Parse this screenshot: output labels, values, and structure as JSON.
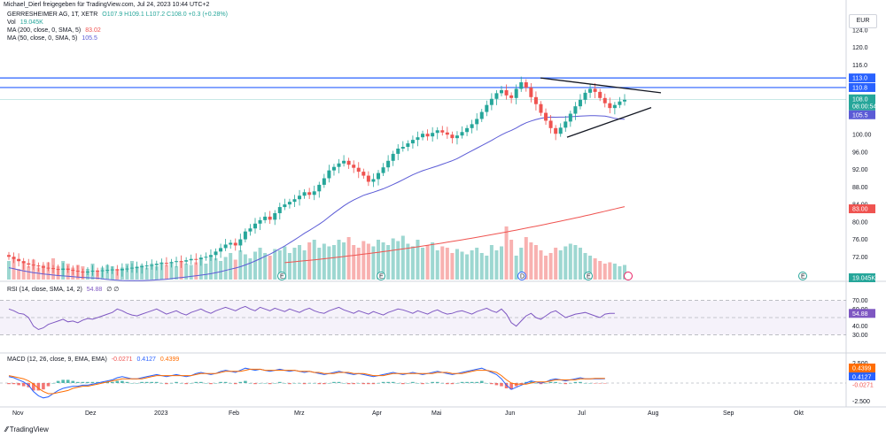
{
  "header": {
    "text": "Michael_Dierl freigegeben für TradingView.com, Jul 24, 2023 10:44 UTC+2"
  },
  "legend": {
    "symbol": "GERRESHEIMER AG, 1T, XETR",
    "ohlc": "O107.9 H109.1 L107.2 C108.0 +0.3 (+0.28%)",
    "vol_label": "Vol",
    "vol_value": "19.045K",
    "ma200_label": "MA (200, close, 0, SMA, 5)",
    "ma200_value": "83.02",
    "ma50_label": "MA (50, close, 0, SMA, 5)",
    "ma50_value": "105.5",
    "rsi_label": "RSI (14, close, SMA, 14, 2)",
    "rsi_value": "54.88",
    "rsi_extra": "∅ ∅",
    "macd_label": "MACD (12, 26, close, 9, EMA, EMA)",
    "macd_hist": "-0.0271",
    "macd_line": "0.4127",
    "macd_signal": "0.4399"
  },
  "currency": "EUR",
  "footer": {
    "brand": "TradingView"
  },
  "colors": {
    "up": "#26a69a",
    "down": "#ef5350",
    "ma50": "#5b5bd6",
    "ma200": "#ef5350",
    "hline": "#2962ff",
    "rsi": "#7e57c2",
    "macd": "#2962ff",
    "signal": "#ff6d00"
  },
  "chart_data": {
    "type": "candlestick",
    "price_ticks": [
      "124.0",
      "120.0",
      "116.0",
      "113.0",
      "110.8",
      "108.0",
      "105.5",
      "100.00",
      "96.00",
      "92.00",
      "88.00",
      "84.00",
      "83.00",
      "80.00",
      "76.00",
      "72.00",
      "19.045K"
    ],
    "time_ticks": [
      "Nov",
      "Dez",
      "2023",
      "Feb",
      "Mrz",
      "Apr",
      "Mai",
      "Jun",
      "Jul",
      "Aug",
      "Sep",
      "Okt"
    ],
    "rsi_ticks": [
      "70.00",
      "60.00",
      "54.88",
      "40.00",
      "30.00"
    ],
    "macd_ticks": [
      "2.500",
      "0.4399",
      "0.4127",
      "-0.0271",
      "-2.500"
    ],
    "horizontal_levels": [
      113.0,
      110.8
    ],
    "triangle": {
      "upper": [
        [
          113.0,
          "Jun"
        ],
        [
          109.6,
          "Jul end"
        ]
      ],
      "lower": [
        [
          99.4,
          "Jun end"
        ],
        [
          106.2,
          "Jul end"
        ]
      ]
    },
    "last_price": 108.0,
    "countdown": "08:00:54",
    "closes": [
      72.0,
      71.5,
      71.0,
      70.5,
      70.2,
      70.0,
      69.8,
      69.5,
      69.4,
      69.2,
      69.0,
      69.3,
      69.0,
      68.8,
      68.6,
      68.5,
      68.6,
      68.8,
      68.7,
      68.9,
      69.0,
      69.1,
      68.9,
      69.2,
      69.3,
      69.5,
      69.6,
      69.8,
      70.0,
      70.1,
      70.4,
      70.6,
      70.5,
      70.8,
      71.0,
      70.9,
      71.2,
      71.5,
      71.4,
      71.8,
      72.0,
      72.4,
      73.2,
      74.0,
      74.8,
      75.2,
      74.6,
      76.0,
      77.8,
      78.5,
      79.6,
      80.4,
      81.2,
      80.5,
      82.0,
      83.4,
      84.0,
      84.6,
      85.2,
      86.0,
      86.8,
      86.2,
      87.0,
      88.5,
      90.0,
      91.8,
      92.6,
      93.4,
      94.0,
      93.1,
      92.4,
      91.5,
      90.6,
      89.2,
      89.8,
      91.2,
      92.5,
      94.0,
      95.6,
      96.8,
      97.2,
      98.0,
      98.8,
      99.4,
      100.2,
      99.6,
      100.4,
      101.0,
      100.5,
      100.0,
      99.2,
      99.8,
      100.6,
      101.5,
      102.4,
      103.6,
      105.2,
      106.8,
      108.2,
      109.5,
      110.2,
      109.0,
      108.4,
      110.5,
      112.0,
      110.8,
      108.6,
      107.0,
      105.0,
      103.2,
      101.5,
      100.2,
      101.6,
      103.0,
      104.8,
      106.5,
      108.0,
      109.6,
      110.5,
      109.8,
      108.4,
      107.2,
      106.1,
      106.8,
      107.6,
      108.0
    ],
    "volume": [
      14,
      17,
      8,
      12,
      10,
      15,
      9,
      11,
      13,
      16,
      10,
      14,
      12,
      9,
      11,
      10,
      8,
      12,
      7,
      9,
      11,
      10,
      8,
      9,
      12,
      14,
      10,
      11,
      9,
      12,
      10,
      13,
      11,
      12,
      10,
      14,
      12,
      11,
      13,
      15,
      12,
      18,
      16,
      14,
      17,
      20,
      15,
      22,
      19,
      16,
      21,
      24,
      20,
      18,
      23,
      22,
      25,
      20,
      24,
      26,
      22,
      28,
      30,
      24,
      27,
      25,
      26,
      30,
      28,
      32,
      26,
      24,
      29,
      27,
      25,
      30,
      28,
      26,
      31,
      29,
      33,
      27,
      25,
      30,
      24,
      26,
      28,
      22,
      25,
      24,
      20,
      23,
      21,
      19,
      22,
      24,
      20,
      18,
      26,
      22,
      25,
      40,
      30,
      18,
      24,
      32,
      28,
      26,
      22,
      18,
      20,
      24,
      22,
      25,
      27,
      26,
      24,
      20,
      18,
      16,
      14,
      12,
      13,
      12,
      10,
      11
    ],
    "rsi": [
      60,
      58,
      55,
      54,
      50,
      40,
      36,
      38,
      42,
      44,
      46,
      48,
      45,
      46,
      44,
      47,
      49,
      48,
      50,
      52,
      54,
      56,
      60,
      58,
      55,
      53,
      52,
      54,
      56,
      58,
      60,
      57,
      54,
      56,
      58,
      55,
      53,
      56,
      58,
      60,
      57,
      55,
      58,
      60,
      62,
      60,
      58,
      61,
      63,
      60,
      58,
      62,
      60,
      58,
      61,
      59,
      57,
      60,
      58,
      56,
      59,
      61,
      58,
      56,
      55,
      58,
      60,
      62,
      59,
      57,
      55,
      58,
      56,
      54,
      57,
      55,
      53,
      56,
      58,
      60,
      59,
      57,
      55,
      58,
      56,
      54,
      57,
      59,
      56,
      54,
      55,
      57,
      58,
      56,
      54,
      57,
      59,
      61,
      58,
      56,
      60,
      54,
      44,
      40,
      46,
      52,
      55,
      50,
      48,
      52,
      56,
      58,
      54,
      50,
      52,
      54,
      55,
      56,
      54,
      52,
      50,
      54,
      55,
      55
    ],
    "macd": [
      0.6,
      0.5,
      0.3,
      0.1,
      -0.2,
      -0.8,
      -1.2,
      -1.4,
      -1.3,
      -1.0,
      -0.7,
      -0.5,
      -0.4,
      -0.3,
      -0.3,
      -0.2,
      -0.2,
      -0.1,
      0.0,
      0.1,
      0.2,
      0.3,
      0.5,
      0.6,
      0.5,
      0.4,
      0.4,
      0.5,
      0.6,
      0.7,
      0.8,
      0.7,
      0.6,
      0.7,
      0.8,
      0.7,
      0.6,
      0.7,
      0.9,
      1.0,
      0.9,
      0.8,
      0.9,
      1.1,
      1.2,
      1.1,
      1.0,
      1.2,
      1.4,
      1.3,
      1.2,
      1.3,
      1.2,
      1.1,
      1.2,
      1.3,
      1.2,
      1.1,
      1.2,
      1.1,
      1.0,
      1.1,
      1.0,
      0.9,
      0.8,
      0.9,
      1.0,
      1.1,
      1.0,
      0.9,
      0.8,
      0.9,
      0.8,
      0.7,
      0.6,
      0.7,
      0.8,
      0.9,
      1.0,
      0.9,
      0.8,
      0.9,
      1.0,
      0.9,
      0.8,
      0.9,
      1.0,
      1.1,
      1.0,
      0.9,
      0.8,
      0.9,
      1.0,
      1.1,
      1.2,
      1.3,
      1.4,
      1.2,
      1.0,
      0.8,
      0.4,
      -0.2,
      -0.6,
      -0.4,
      -0.2,
      0.0,
      0.2,
      0.1,
      0.0,
      0.1,
      0.3,
      0.4,
      0.3,
      0.2,
      0.3,
      0.4,
      0.5,
      0.4,
      0.4,
      0.4,
      0.4,
      0.41
    ],
    "macd_signal": [
      0.7,
      0.6,
      0.5,
      0.4,
      0.2,
      -0.1,
      -0.5,
      -0.8,
      -1.0,
      -1.0,
      -0.9,
      -0.8,
      -0.7,
      -0.5,
      -0.4,
      -0.3,
      -0.3,
      -0.2,
      -0.1,
      0.0,
      0.1,
      0.2,
      0.3,
      0.4,
      0.4,
      0.4,
      0.4,
      0.4,
      0.5,
      0.6,
      0.7,
      0.7,
      0.7,
      0.7,
      0.7,
      0.7,
      0.7,
      0.7,
      0.8,
      0.9,
      0.9,
      0.9,
      0.9,
      1.0,
      1.1,
      1.1,
      1.1,
      1.1,
      1.2,
      1.3,
      1.3,
      1.3,
      1.2,
      1.2,
      1.2,
      1.2,
      1.2,
      1.2,
      1.2,
      1.1,
      1.1,
      1.1,
      1.0,
      1.0,
      0.9,
      0.9,
      0.9,
      1.0,
      1.0,
      1.0,
      0.9,
      0.9,
      0.9,
      0.8,
      0.7,
      0.7,
      0.7,
      0.8,
      0.9,
      0.9,
      0.9,
      0.9,
      0.9,
      0.9,
      0.9,
      0.9,
      0.9,
      1.0,
      1.0,
      1.0,
      0.9,
      0.9,
      0.9,
      1.0,
      1.1,
      1.2,
      1.2,
      1.2,
      1.1,
      1.0,
      0.7,
      0.3,
      0.0,
      -0.1,
      -0.1,
      -0.1,
      0.0,
      0.1,
      0.1,
      0.1,
      0.2,
      0.3,
      0.3,
      0.3,
      0.3,
      0.3,
      0.4,
      0.4,
      0.4,
      0.44,
      0.44,
      0.44
    ]
  }
}
